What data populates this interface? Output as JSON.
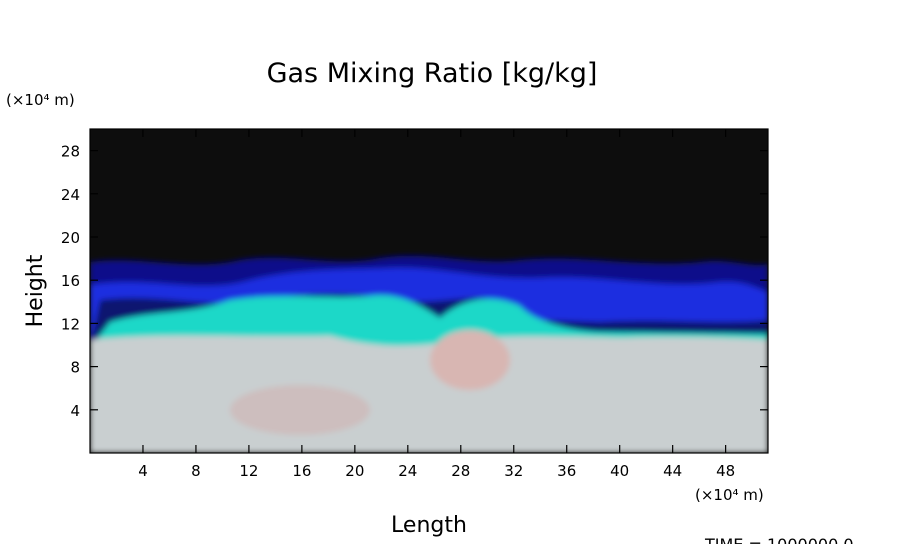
{
  "chart_data": {
    "type": "field",
    "title": "Gas Mixing Ratio [kg/kg]",
    "x_label": "Length",
    "y_label": "Height",
    "x_unit": "(×10⁴ m)",
    "y_unit": "(×10⁴ m)",
    "time_label": "TIME =  1000000.0",
    "xlim": [
      0,
      51.2
    ],
    "ylim": [
      0,
      30
    ],
    "xticks": [
      4,
      8,
      12,
      16,
      20,
      24,
      28,
      32,
      36,
      40,
      44,
      48
    ],
    "yticks": [
      4,
      8,
      12,
      16,
      20,
      24,
      28
    ]
  }
}
